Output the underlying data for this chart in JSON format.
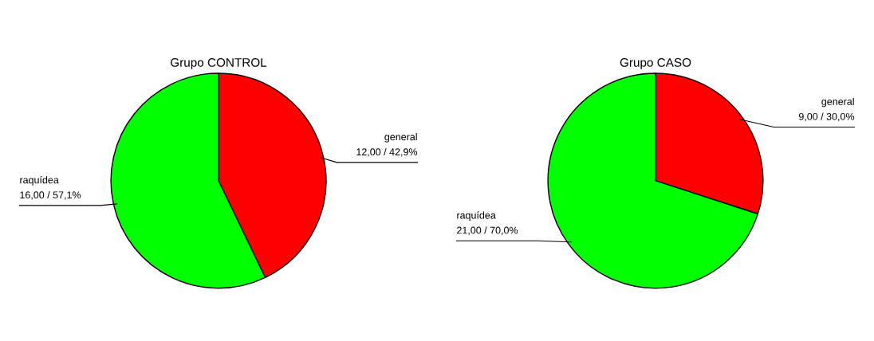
{
  "chart_data": [
    {
      "type": "pie",
      "title": "Grupo CONTROL",
      "categories": [
        "general",
        "raquídea"
      ],
      "values": [
        12,
        16
      ],
      "colors": [
        "#ff0000",
        "#00ff00"
      ],
      "value_labels": [
        "12,00 / 42,9%",
        "16,00 / 57,1%"
      ]
    },
    {
      "type": "pie",
      "title": "Grupo CASO",
      "categories": [
        "general",
        "raquídea"
      ],
      "values": [
        9,
        21
      ],
      "colors": [
        "#ff0000",
        "#00ff00"
      ],
      "value_labels": [
        "9,00 / 30,0%",
        "21,00 / 70,0%"
      ]
    }
  ]
}
